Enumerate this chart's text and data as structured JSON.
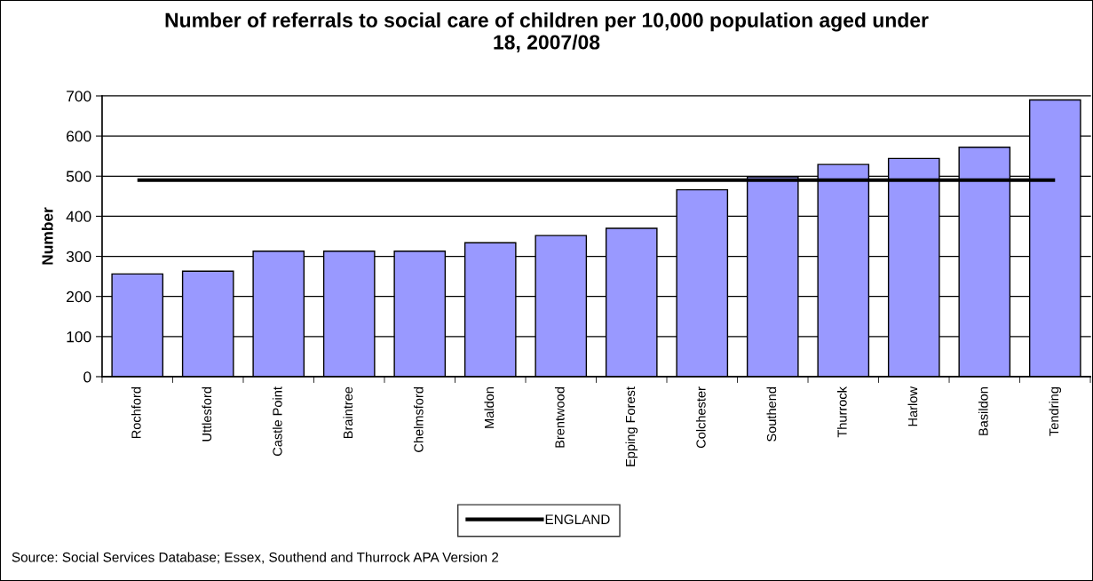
{
  "chart_data": {
    "type": "bar",
    "title": "Number of referrals to social care of children per 10,000 population aged under 18, 2007/08",
    "ylabel": "Number",
    "categories": [
      "Rochford",
      "Uttlesford",
      "Castle Point",
      "Braintree",
      "Chelmsford",
      "Maldon",
      "Brentwood",
      "Epping Forest",
      "Colchester",
      "Southend",
      "Thurrock",
      "Harlow",
      "Basildon",
      "Tendring"
    ],
    "series": [
      {
        "color": "#9999ff",
        "values": [
          256,
          263,
          313,
          313,
          313,
          334,
          352,
          370,
          466,
          498,
          529,
          544,
          572,
          690
        ]
      },
      {
        "name": "ENGLAND",
        "type": "line",
        "color": "#000000",
        "values": [
          490,
          490,
          490,
          490,
          490,
          490,
          490,
          490,
          490,
          490,
          490,
          490,
          490,
          490
        ]
      }
    ],
    "ylim": [
      0,
      700
    ],
    "yticks": [
      0,
      100,
      200,
      300,
      400,
      500,
      600,
      700
    ],
    "grid": "y",
    "legend": "bottom",
    "marker": "none",
    "line_style": "solid",
    "annotations": [
      "Source: Social Services Database; Essex, Southend and Thurrock APA Version 2"
    ]
  }
}
